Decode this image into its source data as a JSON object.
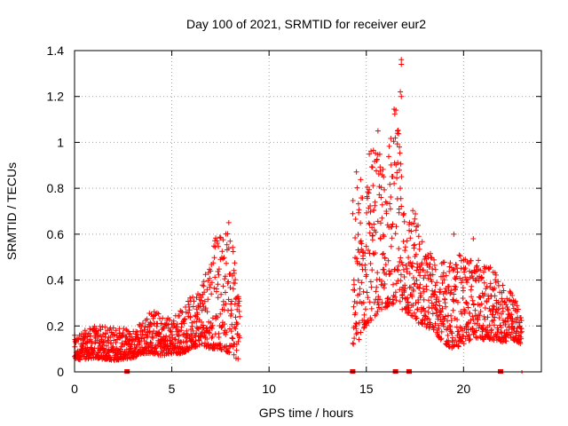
{
  "chart_data": {
    "type": "scatter",
    "title": "Day 100 of 2021, SRMTID for receiver eur2",
    "xlabel": "GPS time / hours",
    "ylabel": "SRMTID / TECUs",
    "xlim": [
      0,
      24
    ],
    "ylim": [
      0,
      1.4
    ],
    "xticks": [
      0,
      5,
      10,
      15,
      20
    ],
    "xtick_labels": [
      "0",
      "5",
      "10",
      "15",
      "20"
    ],
    "yticks": [
      0,
      0.2,
      0.4,
      0.6,
      0.8,
      1.0,
      1.2,
      1.4
    ],
    "ytick_labels": [
      "0",
      "0.2",
      "0.4",
      "0.6",
      "0.8",
      "1",
      "1.2",
      "1.4"
    ],
    "grid": true,
    "marker": "+",
    "color": "#ff0000",
    "series": [
      {
        "name": "SRMTID",
        "envelope_hours": [
          0.0,
          1.0,
          2.0,
          3.0,
          3.5,
          4.0,
          4.5,
          5.0,
          5.5,
          6.0,
          6.5,
          7.0,
          7.5,
          8.0,
          8.5,
          14.3,
          14.6,
          15.0,
          15.5,
          16.0,
          16.5,
          17.0,
          17.5,
          18.0,
          18.5,
          19.0,
          19.5,
          20.0,
          20.5,
          21.0,
          21.5,
          22.0,
          22.5,
          23.0
        ],
        "envelope_low": [
          0.05,
          0.06,
          0.05,
          0.06,
          0.08,
          0.08,
          0.07,
          0.08,
          0.08,
          0.1,
          0.12,
          0.1,
          0.1,
          0.08,
          0.04,
          0.12,
          0.12,
          0.2,
          0.25,
          0.28,
          0.3,
          0.26,
          0.22,
          0.2,
          0.18,
          0.12,
          0.1,
          0.12,
          0.15,
          0.14,
          0.14,
          0.13,
          0.14,
          0.12
        ],
        "envelope_high": [
          0.16,
          0.2,
          0.2,
          0.18,
          0.24,
          0.28,
          0.25,
          0.24,
          0.28,
          0.33,
          0.4,
          0.55,
          0.62,
          0.67,
          0.35,
          0.9,
          0.86,
          0.95,
          0.98,
          0.9,
          1.2,
          0.72,
          0.72,
          0.55,
          0.5,
          0.48,
          0.5,
          0.52,
          0.5,
          0.48,
          0.45,
          0.38,
          0.35,
          0.25
        ],
        "notable_points": [
          {
            "x": 16.8,
            "y": 1.36
          },
          {
            "x": 16.8,
            "y": 1.34
          },
          {
            "x": 16.75,
            "y": 1.22
          },
          {
            "x": 16.8,
            "y": 1.2
          },
          {
            "x": 15.6,
            "y": 1.05
          },
          {
            "x": 16.6,
            "y": 1.04
          },
          {
            "x": 16.7,
            "y": 0.98
          },
          {
            "x": 19.5,
            "y": 0.6
          },
          {
            "x": 20.5,
            "y": 0.58
          }
        ]
      }
    ],
    "gap_markers": [
      2.7,
      14.3,
      16.5,
      17.2,
      21.9
    ],
    "gap_markers_small": [
      23.0
    ]
  }
}
